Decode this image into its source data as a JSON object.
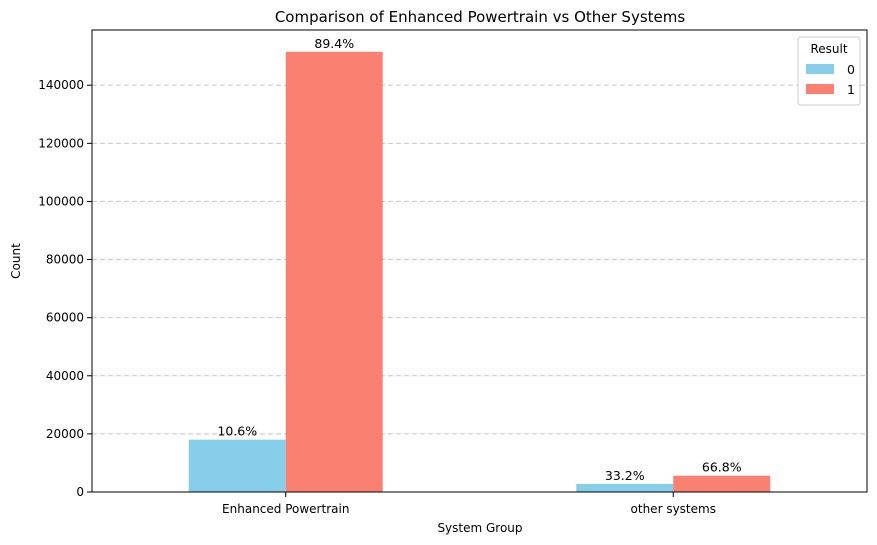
{
  "chart_data": {
    "type": "bar",
    "title": "Comparison of Enhanced Powertrain vs Other Systems",
    "xlabel": "System Group",
    "ylabel": "Count",
    "categories": [
      "Enhanced Powertrain",
      "other systems"
    ],
    "series": [
      {
        "name": "0",
        "color": "#87CEEB",
        "values": [
          18000,
          2800
        ],
        "labels": [
          "10.6%",
          "33.2%"
        ]
      },
      {
        "name": "1",
        "color": "#FA8072",
        "values": [
          151500,
          5600
        ],
        "labels": [
          "89.4%",
          "66.8%"
        ]
      }
    ],
    "ylim": [
      0,
      159000
    ],
    "yticks": [
      0,
      20000,
      40000,
      60000,
      80000,
      100000,
      120000,
      140000
    ],
    "grid": "y-dashed",
    "legend": {
      "title": "Result",
      "placement": "top-right"
    }
  }
}
